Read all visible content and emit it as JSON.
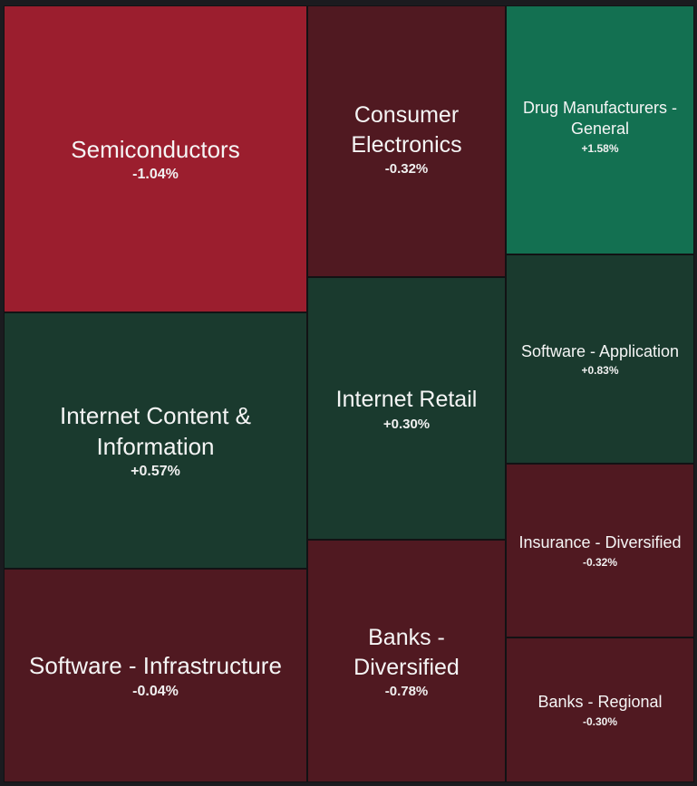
{
  "chart_data": {
    "type": "treemap",
    "colors": {
      "strong_negative": "#9b1e2e",
      "negative": "#501921",
      "strong_positive": "#137051",
      "positive": "#1a3a2e"
    },
    "tiles": [
      {
        "name": "Semiconductors",
        "change": "-1.04%",
        "value": -1.04
      },
      {
        "name": "Internet Content & Information",
        "change": "+0.57%",
        "value": 0.57
      },
      {
        "name": "Software - Infrastructure",
        "change": "-0.04%",
        "value": -0.04
      },
      {
        "name": "Consumer Electronics",
        "change": "-0.32%",
        "value": -0.32
      },
      {
        "name": "Internet Retail",
        "change": "+0.30%",
        "value": 0.3
      },
      {
        "name": "Banks - Diversified",
        "change": "-0.78%",
        "value": -0.78
      },
      {
        "name": "Drug Manufacturers - General",
        "change": "+1.58%",
        "value": 1.58
      },
      {
        "name": "Software - Application",
        "change": "+0.83%",
        "value": 0.83
      },
      {
        "name": "Insurance - Diversified",
        "change": "-0.32%",
        "value": -0.32
      },
      {
        "name": "Banks - Regional",
        "change": "-0.30%",
        "value": -0.3
      }
    ]
  }
}
